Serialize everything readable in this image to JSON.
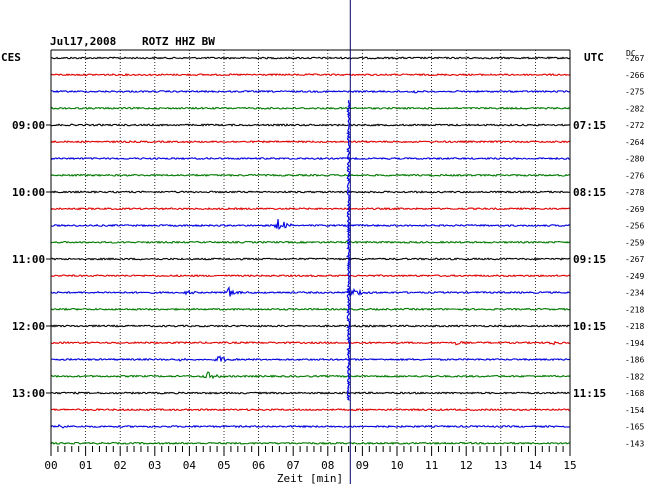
{
  "header": {
    "date": "Jul17,2008",
    "station": "ROTZ HHZ BW",
    "left_zone": "CES",
    "right_zone": "UTC",
    "dc_label": "DC"
  },
  "chart_data": {
    "type": "line",
    "title": "Jul17,2008   ROTZ HHZ BW",
    "xlabel": "Zeit [min]",
    "ylabel": "",
    "xlim": [
      0,
      15
    ],
    "x_ticks": [
      "00",
      "01",
      "02",
      "03",
      "04",
      "05",
      "06",
      "07",
      "08",
      "09",
      "10",
      "11",
      "12",
      "13",
      "14",
      "15"
    ],
    "grid": true,
    "trace_colors": [
      "#000000",
      "#e00000",
      "#0000e0",
      "#007a00"
    ],
    "cursor_minute": 8.65,
    "left_time_labels": [
      {
        "row": 4,
        "text": "09:00"
      },
      {
        "row": 8,
        "text": "10:00"
      },
      {
        "row": 12,
        "text": "11:00"
      },
      {
        "row": 16,
        "text": "12:00"
      },
      {
        "row": 20,
        "text": "13:00"
      }
    ],
    "right_time_labels": [
      {
        "row": 4,
        "text": "07:15"
      },
      {
        "row": 8,
        "text": "08:15"
      },
      {
        "row": 12,
        "text": "09:15"
      },
      {
        "row": 16,
        "text": "10:15"
      },
      {
        "row": 20,
        "text": "11:15"
      }
    ],
    "dc_offsets": [
      "-267",
      "-266",
      "-275",
      "-282",
      "-272",
      "-264",
      "-280",
      "-276",
      "-278",
      "-269",
      "-256",
      "-259",
      "-267",
      "-249",
      "-234",
      "-218",
      "-218",
      "-194",
      "-186",
      "-182",
      "-168",
      "-154",
      "-165",
      "-143"
    ],
    "events": [
      {
        "row": 2,
        "minute": 10.5,
        "amp": 2.5,
        "dur": 0.6
      },
      {
        "row": 10,
        "minute": 6.55,
        "amp": 9,
        "dur": 0.8
      },
      {
        "row": 14,
        "minute": 5.1,
        "amp": 7,
        "dur": 0.7
      },
      {
        "row": 14,
        "minute": 3.9,
        "amp": 3,
        "dur": 0.5
      },
      {
        "row": 17,
        "minute": 11.7,
        "amp": 3,
        "dur": 0.5
      },
      {
        "row": 17,
        "minute": 14.5,
        "amp": 2.5,
        "dur": 0.5
      },
      {
        "row": 18,
        "minute": 4.8,
        "amp": 5,
        "dur": 0.7
      },
      {
        "row": 18,
        "minute": 3.7,
        "amp": 2.5,
        "dur": 0.5
      },
      {
        "row": 19,
        "minute": 4.5,
        "amp": 5,
        "dur": 0.8
      },
      {
        "row": 22,
        "minute": 0.3,
        "amp": 3,
        "dur": 0.4
      }
    ],
    "main_event": {
      "start_row": 3,
      "end_row": 20,
      "minute": 8.6,
      "peak_row": 14
    }
  }
}
